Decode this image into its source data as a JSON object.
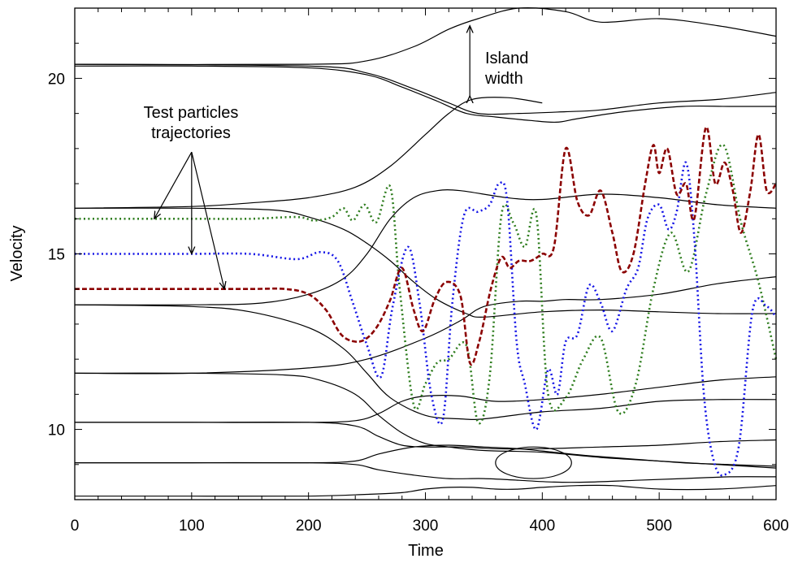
{
  "chart_data": {
    "type": "line",
    "title": "",
    "xlabel": "Time",
    "ylabel": "Velocity",
    "xlim": [
      0,
      600
    ],
    "ylim": [
      8,
      22
    ],
    "xticks": [
      0,
      100,
      200,
      300,
      400,
      500,
      600
    ],
    "xtick_labels": [
      "0",
      "100",
      "200",
      "300",
      "400",
      "500",
      "600"
    ],
    "yticks": [
      10,
      15,
      20
    ],
    "ytick_labels": [
      "10",
      "15",
      "20"
    ],
    "grid": false,
    "legend": "none",
    "annotations": {
      "island": {
        "line1": "Island",
        "line2": "width",
        "arrow_x": 338,
        "arrow_y": [
          19.5,
          21.5
        ]
      },
      "test_particles": {
        "line1": "Test particles",
        "line2": "trajectories",
        "arrow_origin": [
          100,
          17.9
        ],
        "arrow_targets": [
          [
            68,
            16.0
          ],
          [
            100,
            15.0
          ],
          [
            128,
            14.0
          ]
        ]
      }
    },
    "colors": {
      "frame": "#000000",
      "green": "#2e7d1e",
      "blue": "#1414e6",
      "red": "#8b0000"
    },
    "series": [
      {
        "color": "#2e7d1e",
        "style": "dotted",
        "x": [
          0,
          50,
          100,
          150,
          190,
          205,
          220,
          230,
          238,
          248,
          258,
          270,
          278,
          290,
          300,
          310,
          320,
          335,
          345,
          355,
          365,
          375,
          385,
          395,
          405,
          420,
          435,
          450,
          465,
          480,
          495,
          510,
          525,
          540,
          555,
          570,
          585,
          600
        ],
        "y": [
          16.0,
          16.0,
          16.0,
          16.0,
          16.05,
          15.95,
          16.05,
          16.3,
          15.95,
          16.4,
          15.9,
          16.9,
          14.0,
          10.7,
          11.3,
          11.9,
          12.0,
          12.4,
          10.2,
          11.5,
          16.1,
          15.9,
          15.2,
          16.1,
          11.0,
          10.9,
          12.0,
          12.6,
          10.5,
          11.3,
          14.0,
          15.6,
          14.5,
          16.7,
          18.1,
          15.9,
          14.2,
          12.0
        ]
      },
      {
        "color": "#1414e6",
        "style": "dotted",
        "x": [
          0,
          50,
          100,
          150,
          190,
          210,
          225,
          238,
          250,
          262,
          272,
          285,
          295,
          305,
          315,
          323,
          333,
          345,
          355,
          363,
          370,
          378,
          385,
          395,
          405,
          413,
          420,
          430,
          440,
          450,
          460,
          472,
          482,
          490,
          500,
          508,
          515,
          523,
          530,
          538,
          546,
          555,
          568,
          580,
          592,
          600
        ],
        "y": [
          15.0,
          15.0,
          15.0,
          15.0,
          14.85,
          15.05,
          14.8,
          13.6,
          12.4,
          11.5,
          13.5,
          15.2,
          13.6,
          11.0,
          10.3,
          13.6,
          16.1,
          16.2,
          16.4,
          17.0,
          16.5,
          12.5,
          11.3,
          10.0,
          11.7,
          11.0,
          12.5,
          12.7,
          14.1,
          13.6,
          12.8,
          14.0,
          14.6,
          16.0,
          16.4,
          15.7,
          16.2,
          17.6,
          15.5,
          11.1,
          9.2,
          8.7,
          9.5,
          13.4,
          13.5,
          13.2
        ]
      },
      {
        "color": "#8b0000",
        "style": "dashed",
        "x": [
          0,
          50,
          100,
          150,
          180,
          200,
          215,
          228,
          240,
          250,
          260,
          270,
          280,
          290,
          298,
          308,
          318,
          330,
          338,
          346,
          356,
          365,
          372,
          380,
          390,
          400,
          410,
          420,
          430,
          440,
          450,
          460,
          468,
          478,
          488,
          495,
          500,
          507,
          515,
          523,
          530,
          540,
          548,
          556,
          563,
          570,
          578,
          585,
          592,
          600
        ],
        "y": [
          14.0,
          14.0,
          14.0,
          14.0,
          14.0,
          13.85,
          13.4,
          12.7,
          12.5,
          12.6,
          13.0,
          13.7,
          14.6,
          13.4,
          12.8,
          13.7,
          14.2,
          13.8,
          11.9,
          12.5,
          14.0,
          14.9,
          14.6,
          14.8,
          14.8,
          15.0,
          15.2,
          18.0,
          16.5,
          16.1,
          16.8,
          15.6,
          14.5,
          15.0,
          17.0,
          18.1,
          17.3,
          18.0,
          16.7,
          17.0,
          16.0,
          18.6,
          17.0,
          17.6,
          16.8,
          15.6,
          16.8,
          18.4,
          16.8,
          17.0
        ]
      },
      {
        "color": "#000000",
        "style": "solid",
        "x": [
          0,
          200,
          250,
          290,
          320,
          345,
          380,
          420,
          450,
          500,
          550,
          600
        ],
        "y": [
          20.4,
          20.4,
          20.5,
          20.9,
          21.4,
          21.7,
          22.0,
          21.9,
          21.6,
          21.7,
          21.5,
          21.2
        ]
      },
      {
        "color": "#000000",
        "style": "solid",
        "x": [
          0,
          200,
          250,
          290,
          320,
          345,
          380,
          420,
          450,
          500,
          550,
          600
        ],
        "y": [
          20.4,
          20.35,
          20.15,
          19.7,
          19.3,
          19.0,
          19.0,
          19.05,
          19.1,
          19.3,
          19.4,
          19.6
        ]
      },
      {
        "color": "#000000",
        "style": "solid",
        "x": [
          0,
          100,
          200,
          250,
          280,
          310,
          335,
          360,
          390,
          412,
          430,
          470,
          520,
          560,
          600
        ],
        "y": [
          20.35,
          20.35,
          20.3,
          20.1,
          19.75,
          19.35,
          19.0,
          18.9,
          18.8,
          18.75,
          18.85,
          19.05,
          19.2,
          19.2,
          19.2
        ]
      },
      {
        "color": "#000000",
        "style": "solid",
        "x": [
          0,
          100,
          150,
          200,
          240,
          270,
          300,
          320,
          340,
          370,
          400
        ],
        "y": [
          16.3,
          16.35,
          16.45,
          16.6,
          16.9,
          17.5,
          18.4,
          19.0,
          19.4,
          19.45,
          19.3
        ]
      },
      {
        "color": "#000000",
        "style": "solid",
        "x": [
          0,
          100,
          170,
          200,
          230,
          250,
          270,
          290,
          310,
          335,
          350,
          400,
          450,
          500,
          550,
          600
        ],
        "y": [
          16.3,
          16.3,
          16.25,
          16.05,
          15.7,
          15.3,
          14.8,
          14.2,
          13.7,
          13.3,
          13.2,
          13.35,
          13.4,
          13.35,
          13.3,
          13.3
        ]
      },
      {
        "color": "#000000",
        "style": "solid",
        "x": [
          0,
          100,
          160,
          200,
          230,
          250,
          270,
          290,
          310,
          330,
          370,
          400,
          450,
          500,
          550,
          600
        ],
        "y": [
          13.55,
          13.55,
          13.6,
          13.85,
          14.3,
          15.0,
          16.0,
          16.6,
          16.8,
          16.8,
          16.6,
          16.55,
          16.7,
          16.6,
          16.4,
          16.3
        ]
      },
      {
        "color": "#000000",
        "style": "solid",
        "x": [
          0,
          100,
          150,
          200,
          230,
          250,
          270,
          300,
          330,
          350,
          400,
          450,
          500,
          550,
          600
        ],
        "y": [
          13.55,
          13.5,
          13.35,
          12.9,
          12.3,
          11.6,
          10.9,
          10.4,
          10.3,
          10.3,
          10.5,
          10.6,
          10.8,
          10.85,
          10.85
        ]
      },
      {
        "color": "#000000",
        "style": "solid",
        "x": [
          0,
          100,
          200,
          250,
          300,
          330,
          350,
          380,
          400,
          420,
          450,
          500,
          550,
          600
        ],
        "y": [
          11.6,
          11.6,
          11.75,
          12.0,
          12.6,
          13.1,
          13.5,
          13.65,
          13.65,
          13.7,
          13.7,
          13.85,
          14.15,
          14.35
        ]
      },
      {
        "color": "#000000",
        "style": "solid",
        "x": [
          0,
          100,
          180,
          210,
          240,
          260,
          280,
          300,
          320,
          350,
          400,
          450,
          500,
          550,
          600
        ],
        "y": [
          11.6,
          11.6,
          11.55,
          11.4,
          11.0,
          10.4,
          9.9,
          9.6,
          9.5,
          9.4,
          9.35,
          9.2,
          9.1,
          9.0,
          8.9
        ]
      },
      {
        "color": "#000000",
        "style": "solid",
        "x": [
          0,
          100,
          200,
          240,
          260,
          280,
          300,
          330,
          360,
          400,
          450,
          500,
          550,
          600
        ],
        "y": [
          10.2,
          10.2,
          10.2,
          10.25,
          10.45,
          10.8,
          10.95,
          10.95,
          10.8,
          10.85,
          11.0,
          11.2,
          11.4,
          11.5
        ]
      },
      {
        "color": "#000000",
        "style": "solid",
        "x": [
          0,
          100,
          200,
          240,
          260,
          280,
          300,
          330,
          360,
          400,
          450,
          500,
          550,
          600
        ],
        "y": [
          10.2,
          10.2,
          10.2,
          10.1,
          9.8,
          9.55,
          9.5,
          9.5,
          9.45,
          9.45,
          9.5,
          9.55,
          9.65,
          9.7
        ]
      },
      {
        "color": "#000000",
        "style": "solid",
        "x": [
          0,
          100,
          200,
          240,
          260,
          290,
          320,
          350,
          380,
          410,
          440,
          480,
          520,
          560,
          600
        ],
        "y": [
          9.05,
          9.05,
          9.05,
          9.1,
          9.3,
          9.5,
          9.55,
          9.5,
          9.45,
          9.35,
          9.25,
          9.15,
          9.05,
          9.0,
          8.95
        ]
      },
      {
        "color": "#000000",
        "style": "solid",
        "x": [
          0,
          100,
          200,
          240,
          260,
          290,
          320,
          350,
          380,
          410,
          440,
          480,
          520,
          560,
          600
        ],
        "y": [
          9.05,
          9.05,
          9.05,
          9.0,
          8.85,
          8.7,
          8.6,
          8.6,
          8.55,
          8.5,
          8.5,
          8.55,
          8.6,
          8.65,
          8.65
        ]
      },
      {
        "color": "#000000",
        "style": "solid",
        "x": [
          0,
          100,
          200,
          250,
          280,
          300,
          320,
          340,
          360,
          380,
          400,
          430,
          460,
          500,
          550,
          600
        ],
        "y": [
          8.1,
          8.1,
          8.1,
          8.15,
          8.2,
          8.3,
          8.35,
          8.35,
          8.3,
          8.3,
          8.35,
          8.4,
          8.4,
          8.3,
          8.3,
          8.4
        ]
      }
    ],
    "islands": [
      {
        "x": [
          360,
          425
        ],
        "y_center": 9.05,
        "half_height": 0.45
      }
    ]
  }
}
